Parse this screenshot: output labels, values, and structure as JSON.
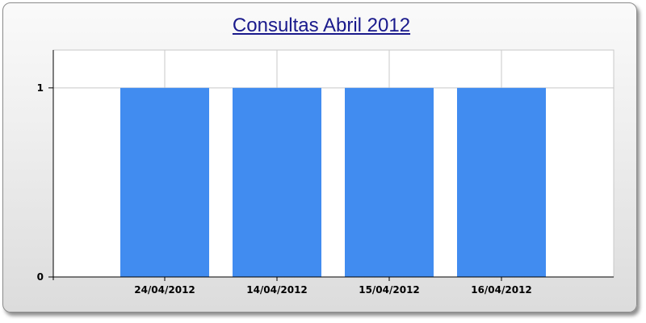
{
  "chart_data": {
    "type": "bar",
    "title": "Consultas Abril 2012",
    "categories": [
      "24/04/2012",
      "14/04/2012",
      "15/04/2012",
      "16/04/2012"
    ],
    "values": [
      1,
      1,
      1,
      1
    ],
    "ylim": [
      0,
      1.2
    ],
    "yticks": [
      0,
      1
    ],
    "grid": true,
    "bar_color": "#418cf0"
  }
}
